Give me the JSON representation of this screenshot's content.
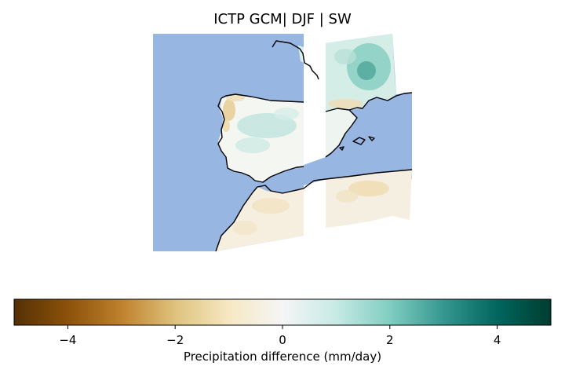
{
  "title": "ICTP GCM| DJF | SW",
  "colorbar": {
    "label": "Precipitation difference (mm/day)",
    "min": -5,
    "max": 5,
    "ticks": [
      -4,
      -2,
      0,
      2,
      4
    ],
    "tick_labels": [
      "−4",
      "−2",
      "0",
      "2",
      "4"
    ],
    "colormap": "BrBG",
    "stops": [
      "#543005",
      "#8c510a",
      "#bf812d",
      "#dfc27d",
      "#f6e8c3",
      "#f5f5f5",
      "#c7eae5",
      "#80cdc1",
      "#35978f",
      "#01665e",
      "#003c30"
    ]
  },
  "map": {
    "region": "Iberian Peninsula, southern France, western Mediterranean, north-west Africa",
    "ocean_color": "#98b6e2",
    "coastline_color": "#000000"
  }
}
